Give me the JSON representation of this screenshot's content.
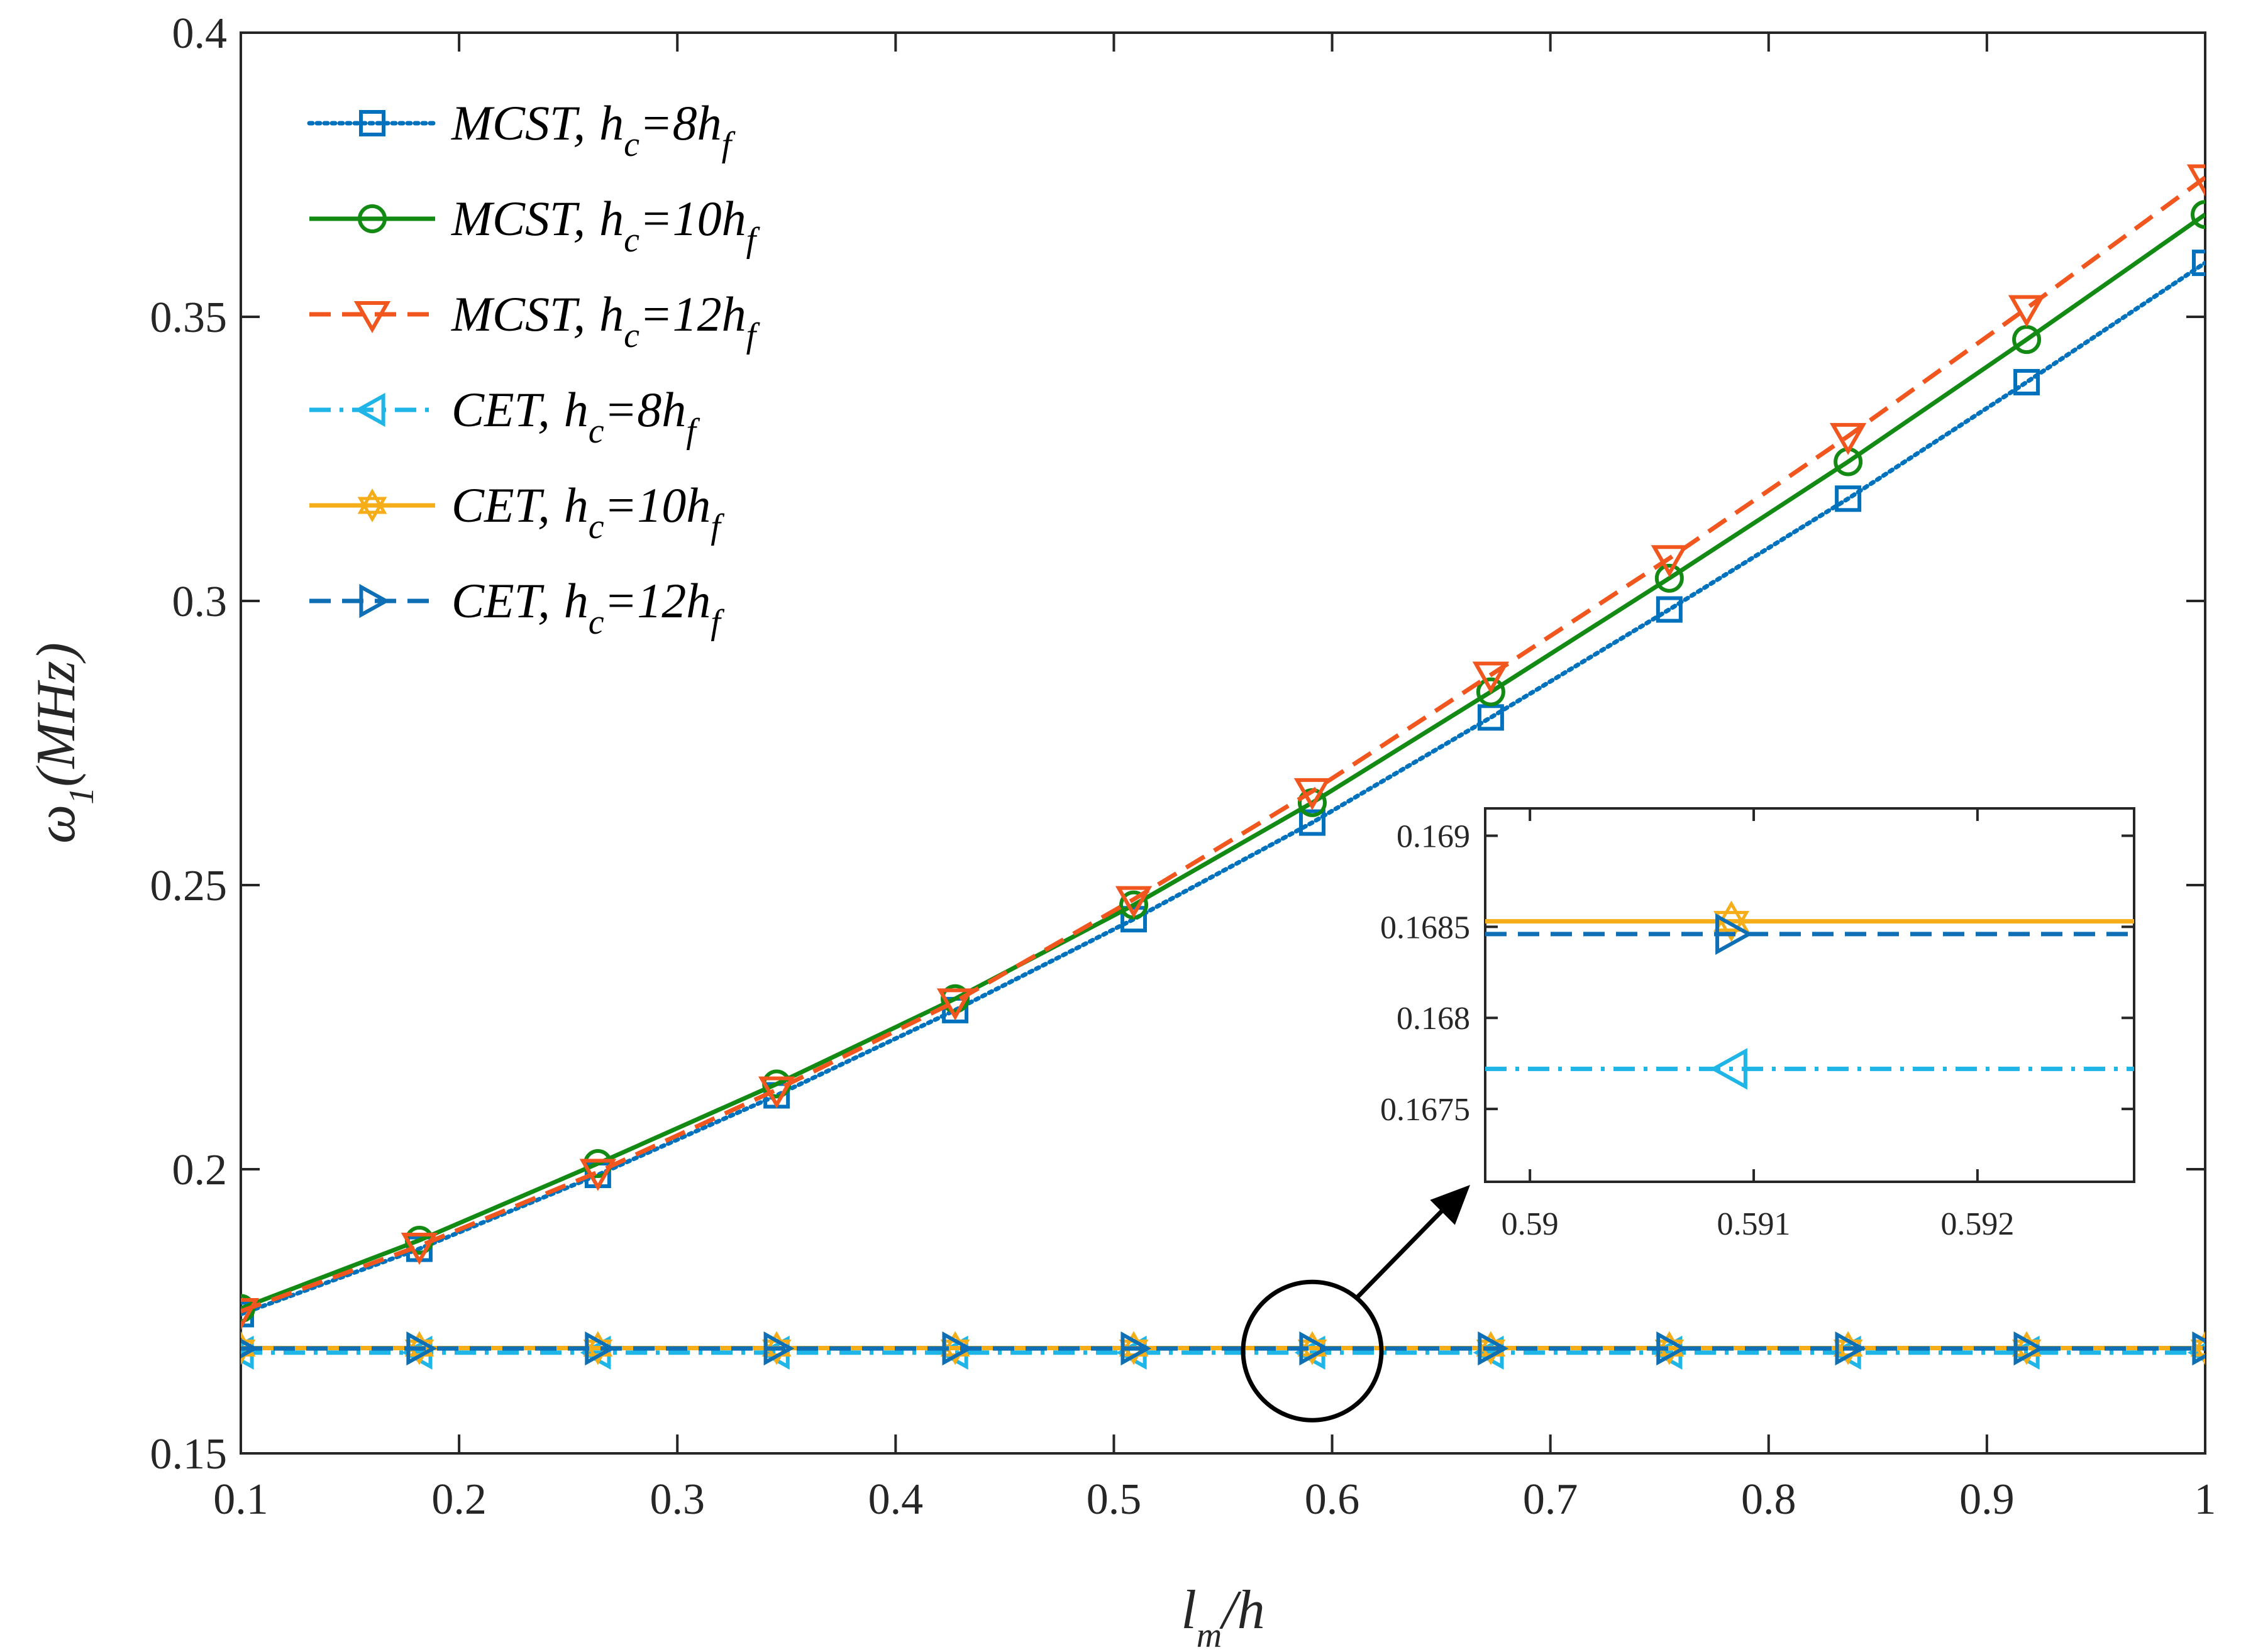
{
  "chart_data": {
    "type": "line",
    "xlabel": {
      "main": "l",
      "sub": "m",
      "tail": "/h"
    },
    "ylabel": {
      "main": "ω",
      "sub": "1",
      "tail": "(MHz)"
    },
    "xlim": [
      0.1,
      1
    ],
    "ylim": [
      0.15,
      0.4
    ],
    "xticks": [
      "0.1",
      "0.2",
      "0.3",
      "0.4",
      "0.5",
      "0.6",
      "0.7",
      "0.8",
      "0.9",
      "1"
    ],
    "yticks": [
      "0.15",
      "0.2",
      "0.25",
      "0.3",
      "0.35",
      "0.4"
    ],
    "grid": false,
    "legend_position": "top-left",
    "x": [
      0.1,
      0.1818,
      0.2636,
      0.3455,
      0.4273,
      0.5091,
      0.5909,
      0.6727,
      0.7545,
      0.8364,
      0.9182,
      1.0
    ],
    "series": [
      {
        "name": "MCST, h_c=8h_f",
        "theory": "MCST",
        "hc": "8",
        "color": "#0072BD",
        "dash": "dot",
        "marker": "square",
        "values": [
          0.1745,
          0.186,
          0.199,
          0.213,
          0.228,
          0.244,
          0.261,
          0.2795,
          0.2985,
          0.318,
          0.3385,
          0.3595
        ]
      },
      {
        "name": "MCST, h_c=10h_f",
        "theory": "MCST",
        "hc": "10",
        "color": "#138A13",
        "dash": "solid",
        "marker": "circle",
        "values": [
          0.1755,
          0.1875,
          0.201,
          0.215,
          0.23,
          0.2465,
          0.2645,
          0.284,
          0.304,
          0.3245,
          0.346,
          0.368
        ]
      },
      {
        "name": "MCST, h_c=12h_f",
        "theory": "MCST",
        "hc": "12",
        "color": "#F0561E",
        "dash": "dash",
        "marker": "triangle-down",
        "values": [
          0.175,
          0.1865,
          0.1995,
          0.214,
          0.2295,
          0.2475,
          0.2665,
          0.287,
          0.3075,
          0.329,
          0.3515,
          0.3745
        ]
      },
      {
        "name": "CET, h_c=8h_f",
        "theory": "CET",
        "hc": "8",
        "color": "#1FB5E6",
        "dash": "dashdot",
        "marker": "triangle-left",
        "values": [
          0.16772,
          0.16772,
          0.16772,
          0.16772,
          0.16772,
          0.16772,
          0.16772,
          0.16772,
          0.16772,
          0.16772,
          0.16772,
          0.16772
        ]
      },
      {
        "name": "CET, h_c=10h_f",
        "theory": "CET",
        "hc": "10",
        "color": "#F5AD18",
        "dash": "solid",
        "marker": "hexagram",
        "values": [
          0.16853,
          0.16853,
          0.16853,
          0.16853,
          0.16853,
          0.16853,
          0.16853,
          0.16853,
          0.16853,
          0.16853,
          0.16853,
          0.16853
        ]
      },
      {
        "name": "CET, h_c=12h_f",
        "theory": "CET",
        "hc": "12",
        "color": "#0F6FB5",
        "dash": "dash",
        "marker": "triangle-right",
        "values": [
          0.16846,
          0.16846,
          0.16846,
          0.16846,
          0.16846,
          0.16846,
          0.16846,
          0.16846,
          0.16846,
          0.16846,
          0.16846,
          0.16846
        ]
      }
    ],
    "inset": {
      "xlim": [
        0.5898,
        0.5927
      ],
      "ylim": [
        0.1671,
        0.16915
      ],
      "xticks": [
        "0.59",
        "0.591",
        "0.592"
      ],
      "yticks": [
        "0.1675",
        "0.168",
        "0.1685",
        "0.169"
      ],
      "marker_x": 0.5909,
      "zoom_region_center": [
        0.5909,
        0.168
      ]
    }
  }
}
